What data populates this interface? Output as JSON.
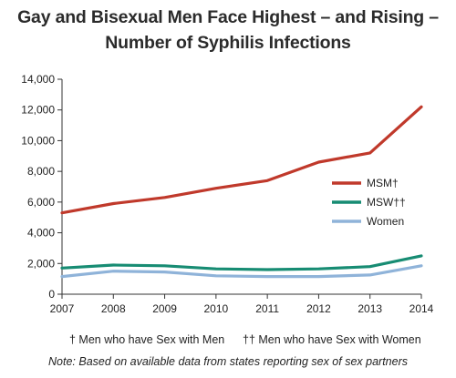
{
  "chart_data": {
    "type": "line",
    "title_line1": "Gay and Bisexual Men Face Highest – and Rising –",
    "title_line2": "Number of Syphilis Infections",
    "x": [
      "2007",
      "2008",
      "2009",
      "2010",
      "2011",
      "2012",
      "2013",
      "2014"
    ],
    "ylim": [
      0,
      14000
    ],
    "yticks": [
      "0",
      "2,000",
      "4,000",
      "6,000",
      "8,000",
      "10,000",
      "12,000",
      "14,000"
    ],
    "ytick_values": [
      0,
      2000,
      4000,
      6000,
      8000,
      10000,
      12000,
      14000
    ],
    "grid": false,
    "legend_position": "right-middle",
    "series": [
      {
        "name": "MSM†",
        "color": "#c0392b",
        "values": [
          5300,
          5900,
          6300,
          6900,
          7400,
          8600,
          9200,
          12200
        ]
      },
      {
        "name": "MSW††",
        "color": "#178c73",
        "values": [
          1700,
          1900,
          1850,
          1650,
          1600,
          1650,
          1800,
          2500
        ]
      },
      {
        "name": "Women",
        "color": "#8fb3d9",
        "values": [
          1150,
          1500,
          1450,
          1200,
          1150,
          1150,
          1250,
          1850
        ]
      }
    ]
  },
  "footnotes": {
    "msm": "† Men who have Sex with Men",
    "msw": "†† Men who have Sex with Women",
    "note": "Note: Based on available data from states reporting sex of sex partners"
  }
}
